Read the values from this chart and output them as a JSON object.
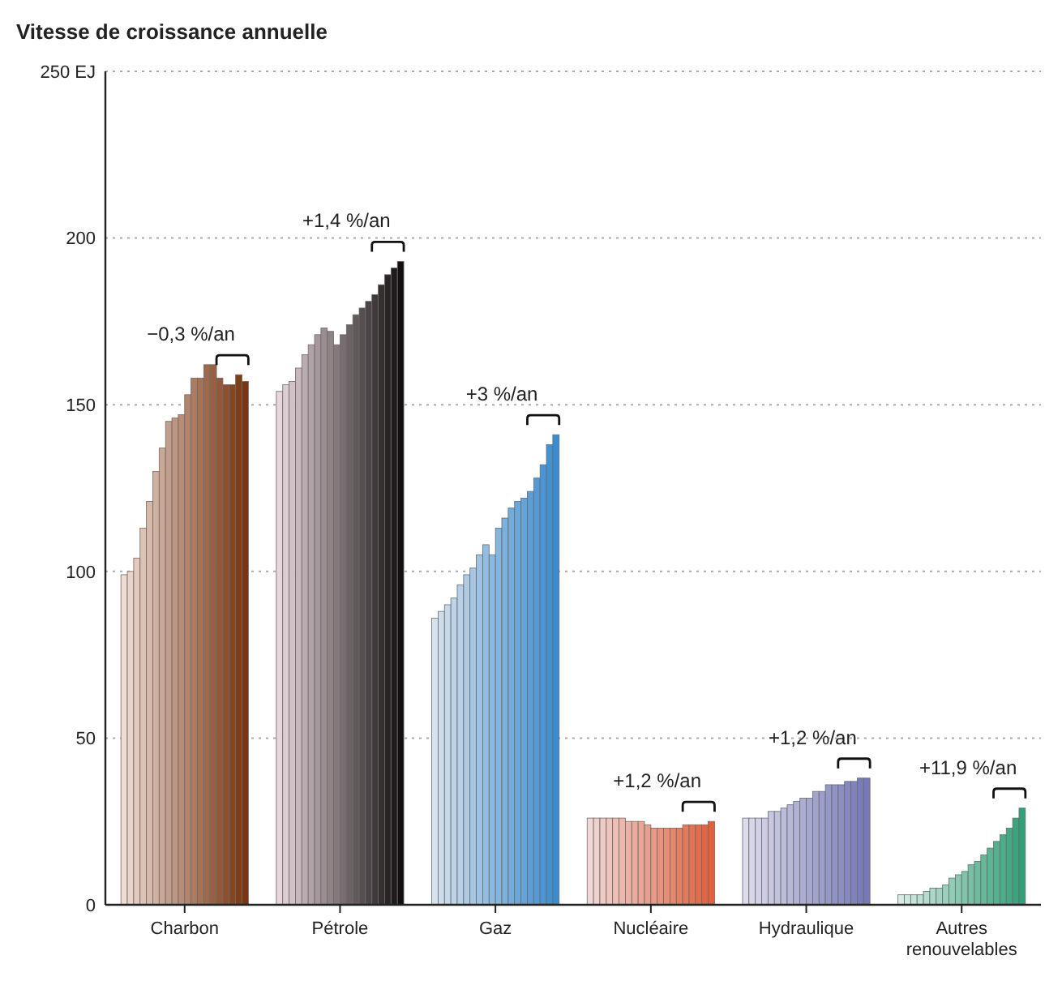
{
  "chart_data": {
    "type": "bar",
    "title": "Vitesse de croissance annuelle",
    "categories": [
      "Charbon",
      "Pétrole",
      "Gaz",
      "Nucléaire",
      "Hydraulique",
      "Autres renouvelables"
    ],
    "series": [
      {
        "values": [
          99,
          154,
          86,
          26,
          26,
          3
        ],
        "colors": [
          "#f0dcd2",
          "#e8d6dc",
          "#d6e2ec",
          "#f0d8d6",
          "#dcdcec",
          "#d6ece2"
        ]
      },
      {
        "values": [
          100,
          156,
          88,
          26,
          26,
          3
        ],
        "colors": [
          "#ead3c8",
          "#ddccd1",
          "#ceddeb",
          "#efd2ce",
          "#d7d7e9",
          "#cde8dc"
        ]
      },
      {
        "values": [
          104,
          157,
          90,
          26,
          26,
          3
        ],
        "colors": [
          "#e4cabe",
          "#d2c1c7",
          "#c6d9e9",
          "#efcbc6",
          "#d1d1e7",
          "#c5e4d7"
        ]
      },
      {
        "values": [
          113,
          161,
          92,
          26,
          26,
          3
        ],
        "colors": [
          "#ddc1b3",
          "#c7b7bc",
          "#bdd4e8",
          "#eec5be",
          "#cccce4",
          "#bce0d1"
        ]
      },
      {
        "values": [
          121,
          165,
          96,
          26,
          28,
          4
        ],
        "colors": [
          "#d7b9a9",
          "#bbacb1",
          "#b5d0e7",
          "#edbfb6",
          "#c7c7e1",
          "#b3dccc"
        ]
      },
      {
        "values": [
          130,
          168,
          99,
          26,
          28,
          5
        ],
        "colors": [
          "#d1b09f",
          "#b0a2a6",
          "#adcbe5",
          "#ecb8ad",
          "#c1c2de",
          "#abd8c6"
        ]
      },
      {
        "values": [
          137,
          171,
          101,
          25,
          29,
          5
        ],
        "colors": [
          "#cba795",
          "#a5979c",
          "#a5c7e4",
          "#ecb2a5",
          "#bcbcdc",
          "#a2d4c1"
        ]
      },
      {
        "values": [
          145,
          173,
          105,
          25,
          30,
          6
        ],
        "colors": [
          "#c59e8b",
          "#9a8d91",
          "#9dc2e2",
          "#ebac9d",
          "#b6b7d9",
          "#9ad0bb"
        ]
      },
      {
        "values": [
          146,
          172,
          108,
          25,
          31,
          8
        ],
        "colors": [
          "#be9580",
          "#8f8386",
          "#94bee1",
          "#eaa595",
          "#b1b2d6",
          "#91ccb5"
        ]
      },
      {
        "values": [
          147,
          168,
          105,
          24,
          32,
          9
        ],
        "colors": [
          "#b88c76",
          "#84787b",
          "#8cb9e0",
          "#e99f8d",
          "#acadd3",
          "#88c8b0"
        ]
      },
      {
        "values": [
          153,
          171,
          113,
          23,
          32,
          10
        ],
        "colors": [
          "#b2846c",
          "#786e71",
          "#84b5de",
          "#e99985",
          "#a6a7d1",
          "#80c4aa"
        ]
      },
      {
        "values": [
          158,
          174,
          116,
          23,
          34,
          12
        ],
        "colors": [
          "#ac7b62",
          "#6d6366",
          "#7cb0dd",
          "#e8927d",
          "#a1a2ce",
          "#77c0a5"
        ]
      },
      {
        "values": [
          158,
          177,
          119,
          23,
          34,
          13
        ],
        "colors": [
          "#a57257",
          "#62595b",
          "#73acdc",
          "#e78c75",
          "#9c9dcb",
          "#6ebc9f"
        ]
      },
      {
        "values": [
          162,
          179,
          121,
          23,
          36,
          15
        ],
        "colors": [
          "#9f694d",
          "#574e50",
          "#6ba7da",
          "#e6866d",
          "#9698c8",
          "#66b899"
        ]
      },
      {
        "values": [
          162,
          181,
          122,
          23,
          36,
          17
        ],
        "colors": [
          "#996043",
          "#4c4446",
          "#63a3d9",
          "#e67f64",
          "#9192c6",
          "#5db494"
        ]
      },
      {
        "values": [
          158,
          183,
          124,
          24,
          36,
          19
        ],
        "colors": [
          "#935739",
          "#413a3b",
          "#5b9ed7",
          "#e5795c",
          "#8b8dc3",
          "#54b08e"
        ]
      },
      {
        "values": [
          156,
          186,
          128,
          24,
          37,
          21
        ],
        "colors": [
          "#8d4f2f",
          "#352f30",
          "#539ad6",
          "#e47354",
          "#8688c0",
          "#4cac89"
        ]
      },
      {
        "values": [
          156,
          189,
          132,
          24,
          37,
          23
        ],
        "colors": [
          "#864624",
          "#2a2525",
          "#4a95d5",
          "#e36c4c",
          "#8182bd",
          "#43a883"
        ]
      },
      {
        "values": [
          159,
          191,
          138,
          24,
          38,
          26
        ],
        "colors": [
          "#803d1a",
          "#1f1a1b",
          "#4291d3",
          "#e36644",
          "#7b7dbb",
          "#3ba47e"
        ]
      },
      {
        "values": [
          157,
          193,
          141,
          25,
          38,
          29
        ],
        "colors": [
          "#7a3410",
          "#141010",
          "#3a8cd2",
          "#e2603c",
          "#7678b8",
          "#32a078"
        ]
      }
    ],
    "ylim": [
      0,
      250
    ],
    "yticks": [
      0,
      50,
      100,
      150,
      200,
      {
        "value": 250,
        "label": "250 EJ"
      }
    ],
    "grid": "y",
    "annotations": [
      "−0,3 %/an",
      "+1,4 %/an",
      "+3 %/an",
      "+1,2 %/an",
      "+1,2 %/an",
      "+11,9 %/an"
    ]
  }
}
